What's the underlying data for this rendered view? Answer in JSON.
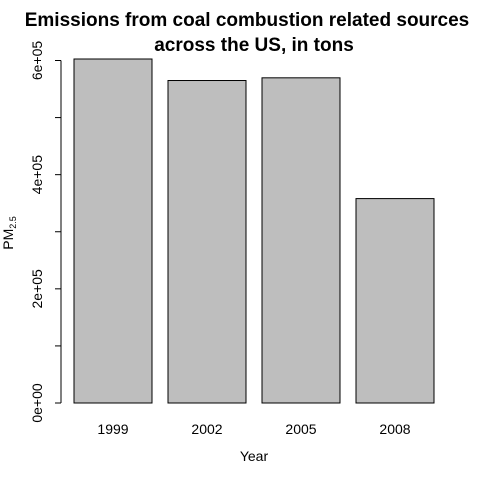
{
  "chart_data": {
    "type": "bar",
    "title": "Emissions from coal combustion related sources across the US, in tons",
    "title_lines": [
      "Emissions from coal combustion related sources",
      "across the US, in tons"
    ],
    "categories": [
      "1999",
      "2002",
      "2005",
      "2008"
    ],
    "values": [
      602624,
      564935,
      569654,
      358084
    ],
    "xlabel": "Year",
    "ylabel": "PM",
    "ylabel_subscript": "2.5",
    "ylim": [
      0,
      602624
    ],
    "yticks": [
      0,
      200000,
      400000,
      600000
    ],
    "ytick_labels": [
      "0e+00",
      "2e+05",
      "4e+05",
      "6e+05"
    ],
    "bar_color": "#bebebe",
    "bar_border_color": "#000000",
    "grid": false,
    "legend": "none"
  }
}
